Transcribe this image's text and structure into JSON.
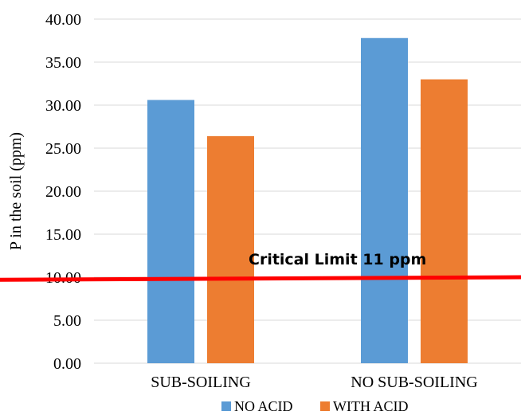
{
  "chart_data": {
    "type": "bar",
    "categories": [
      "SUB-SOILING",
      "NO SUB-SOILING"
    ],
    "series": [
      {
        "name": "NO ACID",
        "values": [
          30.6,
          37.8
        ],
        "color": "#5b9bd5"
      },
      {
        "name": "WITH ACID",
        "values": [
          26.4,
          33.0
        ],
        "color": "#ed7d31"
      }
    ],
    "ylabel": "P in the soil (ppm)",
    "xlabel": "",
    "ylim": [
      0,
      40
    ],
    "yticks": [
      "0.00",
      "5.00",
      "10.00",
      "15.00",
      "20.00",
      "25.00",
      "30.00",
      "35.00",
      "40.00"
    ],
    "grid": true,
    "legend_position": "bottom",
    "annotation": {
      "text": "Critical Limit 11 ppm",
      "line_start_y": 9.7,
      "line_end_y": 10.0,
      "line_color": "#ff0000"
    }
  }
}
